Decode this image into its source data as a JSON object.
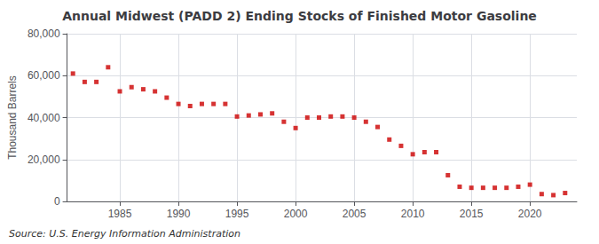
{
  "chart_data": {
    "type": "scatter",
    "title": "Annual Midwest (PADD 2) Ending Stocks of Finished Motor Gasoline",
    "ylabel": "Thousand Barrels",
    "annotation": "Source: U.S. Energy Information Administration",
    "x": [
      1981,
      1982,
      1983,
      1984,
      1985,
      1986,
      1987,
      1988,
      1989,
      1990,
      1991,
      1992,
      1993,
      1994,
      1995,
      1996,
      1997,
      1998,
      1999,
      2000,
      2001,
      2002,
      2003,
      2004,
      2005,
      2006,
      2007,
      2008,
      2009,
      2010,
      2011,
      2012,
      2013,
      2014,
      2015,
      2016,
      2017,
      2018,
      2019,
      2020,
      2021,
      2022,
      2023
    ],
    "values": [
      61000,
      57000,
      57000,
      64000,
      52500,
      54500,
      53500,
      52500,
      49500,
      46500,
      45500,
      46500,
      46500,
      46500,
      40500,
      41000,
      41500,
      42000,
      38000,
      35000,
      40000,
      40000,
      40500,
      40500,
      40000,
      38000,
      35500,
      29500,
      26500,
      22500,
      23500,
      23500,
      12500,
      7000,
      6500,
      6500,
      6500,
      6500,
      7000,
      8000,
      3500,
      3000,
      4000
    ],
    "color": "#cc0000",
    "marker": "square",
    "xlim": [
      1980.5,
      2024
    ],
    "xticks": [
      1985,
      1990,
      1995,
      2000,
      2005,
      2010,
      2015,
      2020
    ],
    "ylim": [
      0,
      80000
    ],
    "yticks": [
      0,
      {
        "value": 20000,
        "label": "20,000"
      },
      {
        "value": 40000,
        "label": "40,000"
      },
      {
        "value": 60000,
        "label": "60,000"
      },
      {
        "value": 80000,
        "label": "80,000"
      }
    ],
    "grid": true
  }
}
